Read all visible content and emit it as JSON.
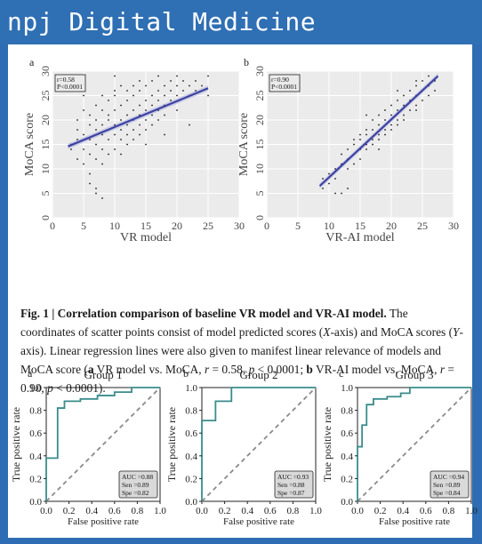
{
  "journal": {
    "title": "npj Digital Medicine"
  },
  "figure1": {
    "panels": [
      {
        "letter": "a",
        "stats": [
          "r=0.58",
          "P<0.0001"
        ],
        "xlabel": "VR model",
        "ylabel": "MoCA score"
      },
      {
        "letter": "b",
        "stats": [
          "r=0.90",
          "P<0.0001"
        ],
        "xlabel": "VR-AI model",
        "ylabel": "MoCA score"
      }
    ],
    "caption": {
      "lead": "Fig. 1 | Correlation comparison of baseline VR model and VR-AI model.",
      "t1": " The coordinates of scatter points consist of model predicted scores (",
      "x_axis": "X",
      "t2": "-axis) and MoCA scores (",
      "y_axis": "Y",
      "t3": "-axis). Linear regression lines were also given to manifest linear relevance of models and MoCA score (",
      "a": "a",
      "t4": " VR model vs. MoCA, ",
      "r_sym": "r",
      "t5": " = 0.58, ",
      "p_sym": "p",
      "t6": " < 0.0001; ",
      "b": "b",
      "t7": " VR-AI model vs. MoCA, ",
      "r_sym2": "r",
      "t8": " = 0.90, ",
      "p_sym2": "p",
      "t9": " < 0.0001)."
    }
  },
  "figure2": {
    "panels": [
      {
        "letter": "a",
        "title": "Group 1",
        "auc": "AUC =0.88",
        "sen": "Sen =0.89",
        "spe": "Spe =0.82"
      },
      {
        "letter": "b",
        "title": "Group 2",
        "auc": "AUC =0.93",
        "sen": "Sen =0.88",
        "spe": "Spe =0.87"
      },
      {
        "letter": "c",
        "title": "Group 3",
        "auc": "AUC =0.94",
        "sen": "Sen =0.89",
        "spe": "Spe =0.84"
      }
    ],
    "xlabel": "False positive rate",
    "ylabel": "True positive rate"
  },
  "chart_data": [
    {
      "type": "scatter",
      "name": "fig1a",
      "xlabel": "VR model",
      "ylabel": "MoCA score",
      "xlim": [
        0,
        30
      ],
      "ylim": [
        0,
        30
      ],
      "xticks": [
        0,
        5,
        10,
        15,
        20,
        25,
        30
      ],
      "yticks": [
        0,
        5,
        10,
        15,
        20,
        25,
        30
      ],
      "grid": true,
      "regression": {
        "x": [
          2.5,
          25
        ],
        "y": [
          14.6,
          26.5
        ]
      },
      "points": [
        [
          3,
          15
        ],
        [
          3,
          14
        ],
        [
          4,
          18
        ],
        [
          4,
          16
        ],
        [
          4,
          20
        ],
        [
          4,
          12
        ],
        [
          5,
          17
        ],
        [
          5,
          14
        ],
        [
          5,
          22
        ],
        [
          5,
          11
        ],
        [
          6,
          16
        ],
        [
          6,
          19
        ],
        [
          6,
          13
        ],
        [
          6,
          21
        ],
        [
          6,
          9
        ],
        [
          7,
          18
        ],
        [
          7,
          15
        ],
        [
          7,
          23
        ],
        [
          7,
          12
        ],
        [
          7,
          6
        ],
        [
          7,
          20
        ],
        [
          8,
          17
        ],
        [
          8,
          19
        ],
        [
          8,
          14
        ],
        [
          8,
          22
        ],
        [
          8,
          25
        ],
        [
          8,
          11
        ],
        [
          8,
          4
        ],
        [
          9,
          18
        ],
        [
          9,
          16
        ],
        [
          9,
          21
        ],
        [
          9,
          13
        ],
        [
          9,
          24
        ],
        [
          9,
          20
        ],
        [
          10,
          19
        ],
        [
          10,
          17
        ],
        [
          10,
          22
        ],
        [
          10,
          14
        ],
        [
          10,
          25
        ],
        [
          10,
          26
        ],
        [
          11,
          20
        ],
        [
          11,
          18
        ],
        [
          11,
          23
        ],
        [
          11,
          16
        ],
        [
          11,
          27
        ],
        [
          11,
          13
        ],
        [
          12,
          21
        ],
        [
          12,
          19
        ],
        [
          12,
          24
        ],
        [
          12,
          17
        ],
        [
          12,
          15
        ],
        [
          12,
          26
        ],
        [
          13,
          22
        ],
        [
          13,
          20
        ],
        [
          13,
          18
        ],
        [
          13,
          25
        ],
        [
          13,
          27
        ],
        [
          13,
          16
        ],
        [
          14,
          21
        ],
        [
          14,
          23
        ],
        [
          14,
          19
        ],
        [
          14,
          26
        ],
        [
          14,
          28
        ],
        [
          14,
          17
        ],
        [
          15,
          22
        ],
        [
          15,
          24
        ],
        [
          15,
          20
        ],
        [
          15,
          27
        ],
        [
          15,
          18
        ],
        [
          15,
          15
        ],
        [
          16,
          23
        ],
        [
          16,
          25
        ],
        [
          16,
          21
        ],
        [
          16,
          19
        ],
        [
          16,
          28
        ],
        [
          17,
          24
        ],
        [
          17,
          22
        ],
        [
          17,
          26
        ],
        [
          17,
          20
        ],
        [
          17,
          29
        ],
        [
          18,
          25
        ],
        [
          18,
          23
        ],
        [
          18,
          27
        ],
        [
          18,
          21
        ],
        [
          18,
          17
        ],
        [
          19,
          26
        ],
        [
          19,
          24
        ],
        [
          19,
          28
        ],
        [
          20,
          25
        ],
        [
          20,
          27
        ],
        [
          20,
          22
        ],
        [
          20,
          29
        ],
        [
          21,
          26
        ],
        [
          21,
          28
        ],
        [
          22,
          27
        ],
        [
          22,
          25
        ],
        [
          22,
          19
        ],
        [
          23,
          26
        ],
        [
          23,
          28
        ],
        [
          24,
          27
        ],
        [
          25,
          29
        ],
        [
          25,
          25
        ],
        [
          10,
          29
        ],
        [
          6,
          7
        ],
        [
          7,
          5
        ],
        [
          5,
          25
        ]
      ]
    },
    {
      "type": "scatter",
      "name": "fig1b",
      "xlabel": "VR-AI model",
      "ylabel": "MoCA score",
      "xlim": [
        0,
        30
      ],
      "ylim": [
        0,
        30
      ],
      "xticks": [
        0,
        5,
        10,
        15,
        20,
        25,
        30
      ],
      "yticks": [
        0,
        5,
        10,
        15,
        20,
        25,
        30
      ],
      "grid": true,
      "regression": {
        "x": [
          8.5,
          27.5
        ],
        "y": [
          6.5,
          29
        ]
      },
      "points": [
        [
          9,
          6
        ],
        [
          9,
          8
        ],
        [
          10,
          9
        ],
        [
          10,
          7
        ],
        [
          11,
          10
        ],
        [
          11,
          8
        ],
        [
          12,
          5
        ],
        [
          12,
          11
        ],
        [
          12,
          13
        ],
        [
          13,
          12
        ],
        [
          13,
          10
        ],
        [
          13,
          14
        ],
        [
          14,
          13
        ],
        [
          14,
          11
        ],
        [
          14,
          15
        ],
        [
          14,
          16
        ],
        [
          15,
          14
        ],
        [
          15,
          12
        ],
        [
          15,
          16
        ],
        [
          15,
          17
        ],
        [
          16,
          15
        ],
        [
          16,
          17
        ],
        [
          16,
          14
        ],
        [
          16,
          18
        ],
        [
          17,
          16
        ],
        [
          17,
          18
        ],
        [
          17,
          20
        ],
        [
          17,
          15
        ],
        [
          18,
          17
        ],
        [
          18,
          19
        ],
        [
          18,
          21
        ],
        [
          18,
          16
        ],
        [
          19,
          18
        ],
        [
          19,
          20
        ],
        [
          19,
          22
        ],
        [
          19,
          17
        ],
        [
          20,
          19
        ],
        [
          20,
          21
        ],
        [
          20,
          23
        ],
        [
          20,
          18
        ],
        [
          21,
          20
        ],
        [
          21,
          22
        ],
        [
          21,
          24
        ],
        [
          21,
          19
        ],
        [
          22,
          21
        ],
        [
          22,
          23
        ],
        [
          22,
          25
        ],
        [
          22,
          20
        ],
        [
          23,
          22
        ],
        [
          23,
          24
        ],
        [
          23,
          26
        ],
        [
          24,
          23
        ],
        [
          24,
          25
        ],
        [
          24,
          27
        ],
        [
          24,
          22
        ],
        [
          25,
          24
        ],
        [
          25,
          26
        ],
        [
          25,
          28
        ],
        [
          26,
          25
        ],
        [
          26,
          27
        ],
        [
          26,
          29
        ],
        [
          27,
          28
        ],
        [
          27,
          26
        ],
        [
          11,
          5
        ],
        [
          13,
          6
        ],
        [
          16,
          21
        ],
        [
          18,
          14
        ],
        [
          21,
          26
        ],
        [
          24,
          28
        ]
      ]
    },
    {
      "type": "line",
      "name": "fig2a",
      "title": "Group 1",
      "xlabel": "False positive rate",
      "ylabel": "True positive rate",
      "xlim": [
        0,
        1
      ],
      "ylim": [
        0,
        1
      ],
      "xticks": [
        0.0,
        0.2,
        0.4,
        0.6,
        0.8,
        1.0
      ],
      "yticks": [
        0.0,
        0.2,
        0.4,
        0.6,
        0.8,
        1.0
      ],
      "roc": [
        [
          0,
          0
        ],
        [
          0,
          0.38
        ],
        [
          0.1,
          0.38
        ],
        [
          0.1,
          0.82
        ],
        [
          0.16,
          0.82
        ],
        [
          0.16,
          0.88
        ],
        [
          0.3,
          0.88
        ],
        [
          0.3,
          0.9
        ],
        [
          0.45,
          0.9
        ],
        [
          0.45,
          0.93
        ],
        [
          0.6,
          0.93
        ],
        [
          0.6,
          0.96
        ],
        [
          0.75,
          0.96
        ],
        [
          0.75,
          1.0
        ],
        [
          1,
          1
        ]
      ],
      "diagonal": [
        [
          0,
          0
        ],
        [
          1,
          1
        ]
      ]
    },
    {
      "type": "line",
      "name": "fig2b",
      "title": "Group 2",
      "xlabel": "False positive rate",
      "ylabel": "True positive rate",
      "xlim": [
        0,
        1
      ],
      "ylim": [
        0,
        1
      ],
      "xticks": [
        0.0,
        0.2,
        0.4,
        0.6,
        0.8,
        1.0
      ],
      "yticks": [
        0.0,
        0.2,
        0.4,
        0.6,
        0.8,
        1.0
      ],
      "roc": [
        [
          0,
          0
        ],
        [
          0,
          0.71
        ],
        [
          0.12,
          0.71
        ],
        [
          0.12,
          0.88
        ],
        [
          0.26,
          0.88
        ],
        [
          0.26,
          1.0
        ],
        [
          1,
          1
        ]
      ],
      "diagonal": [
        [
          0,
          0
        ],
        [
          1,
          1
        ]
      ]
    },
    {
      "type": "line",
      "name": "fig2c",
      "title": "Group 3",
      "xlabel": "False positive rate",
      "ylabel": "True positive rate",
      "xlim": [
        0,
        1
      ],
      "ylim": [
        0,
        1
      ],
      "xticks": [
        0.0,
        0.2,
        0.4,
        0.6,
        0.8,
        1.0
      ],
      "yticks": [
        0.0,
        0.2,
        0.4,
        0.6,
        0.8,
        1.0
      ],
      "roc": [
        [
          0,
          0
        ],
        [
          0,
          0.48
        ],
        [
          0.04,
          0.48
        ],
        [
          0.04,
          0.67
        ],
        [
          0.08,
          0.67
        ],
        [
          0.08,
          0.85
        ],
        [
          0.14,
          0.85
        ],
        [
          0.14,
          0.9
        ],
        [
          0.26,
          0.9
        ],
        [
          0.26,
          0.92
        ],
        [
          0.38,
          0.92
        ],
        [
          0.38,
          0.95
        ],
        [
          0.46,
          0.95
        ],
        [
          0.46,
          1.0
        ],
        [
          1,
          1
        ]
      ],
      "diagonal": [
        [
          0,
          0
        ],
        [
          1,
          1
        ]
      ]
    }
  ]
}
